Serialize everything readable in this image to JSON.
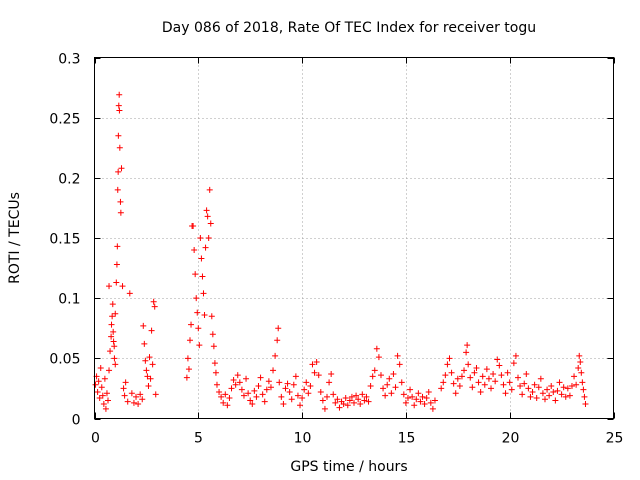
{
  "chart_data": {
    "type": "scatter",
    "title": "Day 086 of 2018, Rate Of TEC Index for receiver togu",
    "xlabel": "GPS time / hours",
    "ylabel": "ROTI / TECUs",
    "xlim": [
      0,
      25
    ],
    "ylim": [
      0,
      0.3
    ],
    "xticks": [
      0,
      5,
      10,
      15,
      20,
      25
    ],
    "xtick_labels": [
      "0",
      "5",
      "10",
      "15",
      "20",
      "25"
    ],
    "yticks": [
      0,
      0.05,
      0.1,
      0.15,
      0.2,
      0.25,
      0.3
    ],
    "ytick_labels": [
      "0",
      "0.05",
      "0.1",
      "0.15",
      "0.2",
      "0.25",
      "0.3"
    ],
    "grid": true,
    "marker": "+",
    "series": [
      {
        "name": "ROTI",
        "color": "#ff0000",
        "points": [
          [
            0.05,
            0.028
          ],
          [
            0.1,
            0.035
          ],
          [
            0.15,
            0.022
          ],
          [
            0.2,
            0.031
          ],
          [
            0.25,
            0.017
          ],
          [
            0.3,
            0.042
          ],
          [
            0.35,
            0.026
          ],
          [
            0.4,
            0.019
          ],
          [
            0.45,
            0.012
          ],
          [
            0.5,
            0.033
          ],
          [
            0.55,
            0.008
          ],
          [
            0.6,
            0.021
          ],
          [
            0.65,
            0.015
          ],
          [
            0.7,
            0.04
          ],
          [
            0.75,
            0.056
          ],
          [
            0.8,
            0.068
          ],
          [
            0.85,
            0.085
          ],
          [
            0.9,
            0.072
          ],
          [
            0.95,
            0.06
          ],
          [
            1.0,
            0.045
          ],
          [
            0.7,
            0.11
          ],
          [
            0.82,
            0.078
          ],
          [
            0.88,
            0.095
          ],
          [
            0.92,
            0.064
          ],
          [
            0.96,
            0.05
          ],
          [
            1.0,
            0.087
          ],
          [
            1.05,
            0.113
          ],
          [
            1.08,
            0.128
          ],
          [
            1.1,
            0.143
          ],
          [
            1.12,
            0.19
          ],
          [
            1.14,
            0.205
          ],
          [
            1.15,
            0.235
          ],
          [
            1.17,
            0.26
          ],
          [
            1.19,
            0.269
          ],
          [
            1.2,
            0.256
          ],
          [
            1.22,
            0.225
          ],
          [
            1.25,
            0.18
          ],
          [
            1.27,
            0.171
          ],
          [
            1.3,
            0.208
          ],
          [
            1.35,
            0.11
          ],
          [
            1.4,
            0.025
          ],
          [
            1.45,
            0.019
          ],
          [
            1.5,
            0.03
          ],
          [
            1.6,
            0.014
          ],
          [
            1.7,
            0.104
          ],
          [
            1.8,
            0.021
          ],
          [
            1.9,
            0.013
          ],
          [
            2.0,
            0.018
          ],
          [
            2.1,
            0.012
          ],
          [
            2.2,
            0.02
          ],
          [
            2.3,
            0.016
          ],
          [
            2.35,
            0.077
          ],
          [
            2.4,
            0.062
          ],
          [
            2.45,
            0.048
          ],
          [
            2.5,
            0.04
          ],
          [
            2.55,
            0.035
          ],
          [
            2.6,
            0.027
          ],
          [
            2.65,
            0.051
          ],
          [
            2.7,
            0.033
          ],
          [
            2.75,
            0.073
          ],
          [
            2.8,
            0.045
          ],
          [
            2.85,
            0.097
          ],
          [
            2.9,
            0.093
          ],
          [
            2.95,
            0.02
          ],
          [
            4.45,
            0.034
          ],
          [
            4.5,
            0.05
          ],
          [
            4.55,
            0.041
          ],
          [
            4.6,
            0.065
          ],
          [
            4.65,
            0.078
          ],
          [
            4.7,
            0.16
          ],
          [
            4.75,
            0.16
          ],
          [
            4.8,
            0.14
          ],
          [
            4.85,
            0.12
          ],
          [
            4.9,
            0.1
          ],
          [
            4.95,
            0.088
          ],
          [
            5.0,
            0.075
          ],
          [
            5.05,
            0.061
          ],
          [
            5.1,
            0.15
          ],
          [
            5.15,
            0.133
          ],
          [
            5.2,
            0.118
          ],
          [
            5.25,
            0.104
          ],
          [
            5.3,
            0.086
          ],
          [
            5.35,
            0.142
          ],
          [
            5.4,
            0.173
          ],
          [
            5.45,
            0.168
          ],
          [
            5.5,
            0.15
          ],
          [
            5.55,
            0.19
          ],
          [
            5.6,
            0.162
          ],
          [
            5.65,
            0.085
          ],
          [
            5.7,
            0.07
          ],
          [
            5.75,
            0.06
          ],
          [
            5.8,
            0.046
          ],
          [
            5.85,
            0.038
          ],
          [
            5.9,
            0.028
          ],
          [
            6.0,
            0.022
          ],
          [
            6.1,
            0.018
          ],
          [
            6.2,
            0.013
          ],
          [
            6.3,
            0.02
          ],
          [
            6.4,
            0.011
          ],
          [
            6.5,
            0.017
          ],
          [
            6.6,
            0.025
          ],
          [
            6.7,
            0.032
          ],
          [
            6.8,
            0.028
          ],
          [
            6.9,
            0.036
          ],
          [
            7.0,
            0.03
          ],
          [
            7.1,
            0.024
          ],
          [
            7.2,
            0.019
          ],
          [
            7.3,
            0.033
          ],
          [
            7.4,
            0.021
          ],
          [
            7.5,
            0.015
          ],
          [
            7.6,
            0.012
          ],
          [
            7.7,
            0.023
          ],
          [
            7.8,
            0.018
          ],
          [
            7.9,
            0.027
          ],
          [
            8.0,
            0.034
          ],
          [
            8.1,
            0.02
          ],
          [
            8.2,
            0.014
          ],
          [
            8.3,
            0.024
          ],
          [
            8.4,
            0.031
          ],
          [
            8.5,
            0.026
          ],
          [
            8.6,
            0.04
          ],
          [
            8.7,
            0.052
          ],
          [
            8.8,
            0.065
          ],
          [
            8.85,
            0.075
          ],
          [
            8.9,
            0.03
          ],
          [
            9.0,
            0.018
          ],
          [
            9.1,
            0.012
          ],
          [
            9.2,
            0.025
          ],
          [
            9.3,
            0.029
          ],
          [
            9.4,
            0.022
          ],
          [
            9.5,
            0.016
          ],
          [
            9.6,
            0.028
          ],
          [
            9.7,
            0.035
          ],
          [
            9.8,
            0.019
          ],
          [
            9.9,
            0.011
          ],
          [
            10.0,
            0.017
          ],
          [
            10.1,
            0.024
          ],
          [
            10.2,
            0.03
          ],
          [
            10.3,
            0.021
          ],
          [
            10.4,
            0.027
          ],
          [
            10.5,
            0.045
          ],
          [
            10.6,
            0.038
          ],
          [
            10.7,
            0.047
          ],
          [
            10.8,
            0.036
          ],
          [
            10.9,
            0.022
          ],
          [
            11.0,
            0.015
          ],
          [
            11.1,
            0.008
          ],
          [
            11.2,
            0.018
          ],
          [
            11.3,
            0.03
          ],
          [
            11.4,
            0.037
          ],
          [
            11.5,
            0.02
          ],
          [
            11.6,
            0.013
          ],
          [
            11.7,
            0.016
          ],
          [
            11.8,
            0.009
          ],
          [
            11.9,
            0.014
          ],
          [
            12.0,
            0.012
          ],
          [
            12.1,
            0.017
          ],
          [
            12.2,
            0.011
          ],
          [
            12.3,
            0.015
          ],
          [
            12.4,
            0.018
          ],
          [
            12.5,
            0.013
          ],
          [
            12.6,
            0.019
          ],
          [
            12.7,
            0.016
          ],
          [
            12.8,
            0.012
          ],
          [
            12.9,
            0.02
          ],
          [
            13.0,
            0.015
          ],
          [
            13.1,
            0.018
          ],
          [
            13.2,
            0.014
          ],
          [
            13.3,
            0.027
          ],
          [
            13.4,
            0.035
          ],
          [
            13.5,
            0.04
          ],
          [
            13.6,
            0.058
          ],
          [
            13.7,
            0.051
          ],
          [
            13.8,
            0.036
          ],
          [
            13.9,
            0.025
          ],
          [
            14.0,
            0.019
          ],
          [
            14.1,
            0.028
          ],
          [
            14.2,
            0.033
          ],
          [
            14.3,
            0.021
          ],
          [
            14.4,
            0.037
          ],
          [
            14.5,
            0.026
          ],
          [
            14.6,
            0.052
          ],
          [
            14.7,
            0.045
          ],
          [
            14.8,
            0.03
          ],
          [
            14.9,
            0.02
          ],
          [
            15.0,
            0.013
          ],
          [
            15.1,
            0.017
          ],
          [
            15.2,
            0.024
          ],
          [
            15.3,
            0.018
          ],
          [
            15.4,
            0.011
          ],
          [
            15.5,
            0.016
          ],
          [
            15.6,
            0.021
          ],
          [
            15.7,
            0.014
          ],
          [
            15.8,
            0.018
          ],
          [
            15.9,
            0.012
          ],
          [
            16.0,
            0.017
          ],
          [
            16.1,
            0.022
          ],
          [
            16.2,
            0.013
          ],
          [
            16.3,
            0.008
          ],
          [
            16.4,
            0.015
          ],
          [
            16.7,
            0.025
          ],
          [
            16.8,
            0.03
          ],
          [
            16.9,
            0.036
          ],
          [
            17.0,
            0.045
          ],
          [
            17.1,
            0.05
          ],
          [
            17.2,
            0.038
          ],
          [
            17.3,
            0.029
          ],
          [
            17.4,
            0.021
          ],
          [
            17.5,
            0.033
          ],
          [
            17.6,
            0.027
          ],
          [
            17.7,
            0.035
          ],
          [
            17.8,
            0.04
          ],
          [
            17.9,
            0.055
          ],
          [
            17.95,
            0.061
          ],
          [
            18.0,
            0.045
          ],
          [
            18.1,
            0.034
          ],
          [
            18.2,
            0.026
          ],
          [
            18.3,
            0.038
          ],
          [
            18.4,
            0.042
          ],
          [
            18.5,
            0.03
          ],
          [
            18.6,
            0.022
          ],
          [
            18.7,
            0.035
          ],
          [
            18.8,
            0.028
          ],
          [
            18.9,
            0.041
          ],
          [
            19.0,
            0.033
          ],
          [
            19.1,
            0.025
          ],
          [
            19.2,
            0.037
          ],
          [
            19.3,
            0.031
          ],
          [
            19.4,
            0.049
          ],
          [
            19.5,
            0.044
          ],
          [
            19.6,
            0.036
          ],
          [
            19.7,
            0.028
          ],
          [
            19.8,
            0.021
          ],
          [
            19.9,
            0.038
          ],
          [
            20.0,
            0.03
          ],
          [
            20.1,
            0.024
          ],
          [
            20.2,
            0.046
          ],
          [
            20.3,
            0.052
          ],
          [
            20.4,
            0.034
          ],
          [
            20.5,
            0.027
          ],
          [
            20.6,
            0.02
          ],
          [
            20.7,
            0.029
          ],
          [
            20.8,
            0.037
          ],
          [
            20.9,
            0.025
          ],
          [
            21.0,
            0.018
          ],
          [
            21.1,
            0.022
          ],
          [
            21.2,
            0.028
          ],
          [
            21.3,
            0.017
          ],
          [
            21.4,
            0.026
          ],
          [
            21.5,
            0.033
          ],
          [
            21.6,
            0.021
          ],
          [
            21.7,
            0.016
          ],
          [
            21.8,
            0.024
          ],
          [
            21.9,
            0.019
          ],
          [
            22.0,
            0.027
          ],
          [
            22.1,
            0.022
          ],
          [
            22.2,
            0.015
          ],
          [
            22.3,
            0.023
          ],
          [
            22.4,
            0.03
          ],
          [
            22.5,
            0.02
          ],
          [
            22.6,
            0.026
          ],
          [
            22.7,
            0.018
          ],
          [
            22.8,
            0.025
          ],
          [
            22.9,
            0.019
          ],
          [
            23.0,
            0.027
          ],
          [
            23.1,
            0.035
          ],
          [
            23.2,
            0.028
          ],
          [
            23.3,
            0.042
          ],
          [
            23.35,
            0.052
          ],
          [
            23.4,
            0.047
          ],
          [
            23.45,
            0.038
          ],
          [
            23.5,
            0.03
          ],
          [
            23.55,
            0.024
          ],
          [
            23.6,
            0.018
          ],
          [
            23.65,
            0.012
          ]
        ]
      }
    ]
  }
}
